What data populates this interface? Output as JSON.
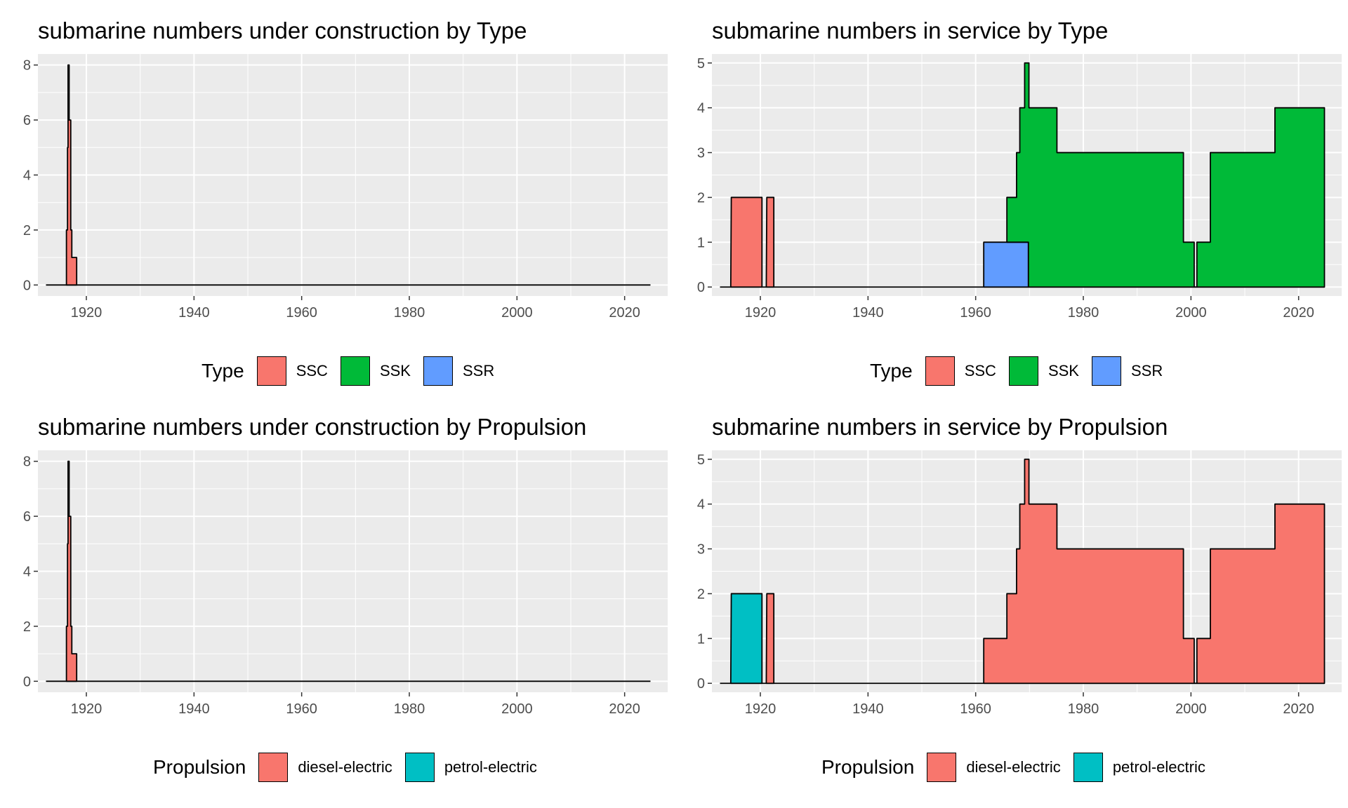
{
  "chart_data": [
    {
      "id": "p1",
      "type": "area",
      "title": "submarine numbers under construction by Type",
      "xlim": [
        1911,
        2028
      ],
      "ylim": [
        -0.4,
        8.4
      ],
      "xticks": [
        1920,
        1940,
        1960,
        1980,
        2000,
        2020
      ],
      "yticks": [
        0,
        2,
        4,
        6,
        8
      ],
      "baseline": [
        1912.5,
        2024.8
      ],
      "legend": {
        "title": "Type",
        "items": [
          {
            "label": "SSC",
            "color": "#F8766D"
          },
          {
            "label": "SSK",
            "color": "#00BA38"
          },
          {
            "label": "SSR",
            "color": "#619CFF"
          }
        ]
      },
      "stacks": [
        {
          "color": "#F8766D",
          "points": [
            [
              1916.3,
              0
            ],
            [
              1916.3,
              2
            ],
            [
              1916.5,
              2
            ],
            [
              1916.5,
              5
            ],
            [
              1916.6,
              5
            ],
            [
              1916.6,
              8
            ],
            [
              1916.8,
              8
            ],
            [
              1916.8,
              6
            ],
            [
              1917.1,
              6
            ],
            [
              1917.1,
              2
            ],
            [
              1917.3,
              2
            ],
            [
              1917.3,
              1
            ],
            [
              1918.2,
              1
            ],
            [
              1918.2,
              0
            ]
          ]
        }
      ]
    },
    {
      "id": "p2",
      "type": "area",
      "title": "submarine numbers in service by Type",
      "xlim": [
        1911,
        2028
      ],
      "ylim": [
        -0.2,
        5.2
      ],
      "xticks": [
        1920,
        1940,
        1960,
        1980,
        2000,
        2020
      ],
      "yticks": [
        0,
        1,
        2,
        3,
        4,
        5
      ],
      "baseline": [
        1912.5,
        2024.8
      ],
      "legend": {
        "title": "Type",
        "items": [
          {
            "label": "SSC",
            "color": "#F8766D"
          },
          {
            "label": "SSK",
            "color": "#00BA38"
          },
          {
            "label": "SSR",
            "color": "#619CFF"
          }
        ]
      },
      "stacks": [
        {
          "color": "#F8766D",
          "points": [
            [
              1914.5,
              0
            ],
            [
              1914.6,
              2
            ],
            [
              1920.3,
              2
            ],
            [
              1920.3,
              0
            ]
          ]
        },
        {
          "color": "#F8766D",
          "points": [
            [
              1921.1,
              0
            ],
            [
              1921.2,
              2
            ],
            [
              1922.5,
              2
            ],
            [
              1922.5,
              0
            ]
          ]
        },
        {
          "color": "#619CFF",
          "points": [
            [
              1961.5,
              0
            ],
            [
              1961.5,
              1
            ],
            [
              1969.8,
              1
            ],
            [
              1969.8,
              0
            ]
          ]
        },
        {
          "color": "#00BA38",
          "points": [
            [
              1965.8,
              1
            ],
            [
              1965.8,
              2
            ],
            [
              1967.6,
              2
            ],
            [
              1967.6,
              3
            ],
            [
              1968.2,
              3
            ],
            [
              1968.2,
              4
            ],
            [
              1969.1,
              4
            ],
            [
              1969.1,
              5
            ],
            [
              1969.9,
              5
            ],
            [
              1969.9,
              4
            ],
            [
              1975.1,
              4
            ],
            [
              1975.1,
              3
            ],
            [
              1998.6,
              3
            ],
            [
              1998.6,
              1
            ],
            [
              2000.6,
              1
            ],
            [
              2000.6,
              0
            ],
            [
              2001.1,
              0
            ],
            [
              2001.1,
              1
            ],
            [
              2003.6,
              1
            ],
            [
              2003.6,
              3
            ],
            [
              2015.6,
              3
            ],
            [
              2015.6,
              4
            ],
            [
              2024.8,
              4
            ],
            [
              2024.8,
              0
            ],
            [
              1969.8,
              0
            ],
            [
              1969.8,
              1
            ]
          ]
        }
      ]
    },
    {
      "id": "p3",
      "type": "area",
      "title": "submarine numbers under construction by Propulsion",
      "xlim": [
        1911,
        2028
      ],
      "ylim": [
        -0.4,
        8.4
      ],
      "xticks": [
        1920,
        1940,
        1960,
        1980,
        2000,
        2020
      ],
      "yticks": [
        0,
        2,
        4,
        6,
        8
      ],
      "baseline": [
        1912.5,
        2024.8
      ],
      "legend": {
        "title": "Propulsion",
        "items": [
          {
            "label": "diesel-electric",
            "color": "#F8766D"
          },
          {
            "label": "petrol-electric",
            "color": "#00BFC4"
          }
        ]
      },
      "stacks": [
        {
          "color": "#F8766D",
          "points": [
            [
              1916.3,
              0
            ],
            [
              1916.3,
              2
            ],
            [
              1916.5,
              2
            ],
            [
              1916.5,
              5
            ],
            [
              1916.6,
              5
            ],
            [
              1916.6,
              8
            ],
            [
              1916.8,
              8
            ],
            [
              1916.8,
              6
            ],
            [
              1917.1,
              6
            ],
            [
              1917.1,
              2
            ],
            [
              1917.3,
              2
            ],
            [
              1917.3,
              1
            ],
            [
              1918.2,
              1
            ],
            [
              1918.2,
              0
            ]
          ]
        }
      ]
    },
    {
      "id": "p4",
      "type": "area",
      "title": "submarine numbers in service by Propulsion",
      "xlim": [
        1911,
        2028
      ],
      "ylim": [
        -0.2,
        5.2
      ],
      "xticks": [
        1920,
        1940,
        1960,
        1980,
        2000,
        2020
      ],
      "yticks": [
        0,
        1,
        2,
        3,
        4,
        5
      ],
      "baseline": [
        1912.5,
        2024.8
      ],
      "legend": {
        "title": "Propulsion",
        "items": [
          {
            "label": "diesel-electric",
            "color": "#F8766D"
          },
          {
            "label": "petrol-electric",
            "color": "#00BFC4"
          }
        ]
      },
      "stacks": [
        {
          "color": "#00BFC4",
          "points": [
            [
              1914.5,
              0
            ],
            [
              1914.6,
              2
            ],
            [
              1920.3,
              2
            ],
            [
              1920.3,
              0
            ]
          ]
        },
        {
          "color": "#F8766D",
          "points": [
            [
              1921.1,
              0
            ],
            [
              1921.2,
              2
            ],
            [
              1922.5,
              2
            ],
            [
              1922.5,
              0
            ]
          ]
        },
        {
          "color": "#F8766D",
          "points": [
            [
              1961.5,
              0
            ],
            [
              1961.5,
              1
            ],
            [
              1965.8,
              1
            ],
            [
              1965.8,
              2
            ],
            [
              1967.6,
              2
            ],
            [
              1967.6,
              3
            ],
            [
              1968.2,
              3
            ],
            [
              1968.2,
              4
            ],
            [
              1969.1,
              4
            ],
            [
              1969.1,
              5
            ],
            [
              1969.9,
              5
            ],
            [
              1969.9,
              4
            ],
            [
              1975.1,
              4
            ],
            [
              1975.1,
              3
            ],
            [
              1998.6,
              3
            ],
            [
              1998.6,
              1
            ],
            [
              2000.6,
              1
            ],
            [
              2000.6,
              0
            ],
            [
              2001.1,
              0
            ],
            [
              2001.1,
              1
            ],
            [
              2003.6,
              1
            ],
            [
              2003.6,
              3
            ],
            [
              2015.6,
              3
            ],
            [
              2015.6,
              4
            ],
            [
              2024.8,
              4
            ],
            [
              2024.8,
              0
            ]
          ]
        }
      ]
    }
  ]
}
